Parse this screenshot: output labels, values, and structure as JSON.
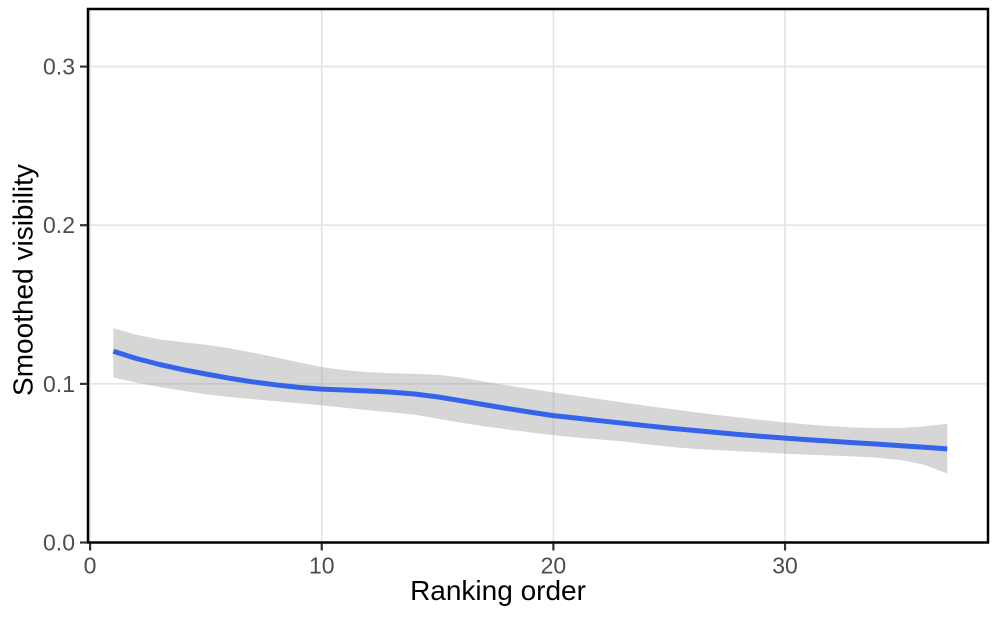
{
  "chart_data": {
    "type": "line",
    "subtype": "smoothed-line-with-confidence-ribbon",
    "xlabel": "Ranking order",
    "ylabel": "Smoothed visibility",
    "xlim": [
      -0.09,
      38.76
    ],
    "ylim": [
      0,
      0.3363
    ],
    "x_ticks": {
      "values": [
        0,
        10,
        20,
        30
      ],
      "labels": [
        "0",
        "10",
        "20",
        "30"
      ]
    },
    "y_ticks": {
      "values": [
        0,
        0.1,
        0.2,
        0.3
      ],
      "labels": [
        "0.0",
        "0.1",
        "0.2",
        "0.3"
      ]
    },
    "grid": "major-only",
    "legend": "none",
    "series": [
      {
        "name": "smoothed visibility mean",
        "x": [
          1,
          2,
          3,
          4,
          5,
          6,
          7,
          8,
          9,
          10,
          11,
          12,
          13,
          14,
          15,
          16,
          17,
          18,
          19,
          20,
          21,
          22,
          23,
          24,
          25,
          26,
          27,
          28,
          29,
          30,
          31,
          32,
          33,
          34,
          35,
          36,
          37
        ],
        "y": [
          0.1205,
          0.116,
          0.1122,
          0.109,
          0.1062,
          0.1036,
          0.1013,
          0.0994,
          0.0978,
          0.0967,
          0.0961,
          0.0955,
          0.0948,
          0.0936,
          0.0918,
          0.0894,
          0.0869,
          0.0845,
          0.0822,
          0.08,
          0.0784,
          0.0768,
          0.0752,
          0.0736,
          0.0721,
          0.0707,
          0.0694,
          0.0681,
          0.0669,
          0.0658,
          0.0648,
          0.0638,
          0.0629,
          0.062,
          0.061,
          0.06,
          0.059
        ],
        "ci_upper": [
          0.135,
          0.131,
          0.128,
          0.1263,
          0.1246,
          0.1225,
          0.1198,
          0.1168,
          0.1136,
          0.1106,
          0.1086,
          0.1074,
          0.1067,
          0.1063,
          0.1058,
          0.104,
          0.1015,
          0.099,
          0.0968,
          0.0946,
          0.0925,
          0.0904,
          0.0883,
          0.0862,
          0.0842,
          0.0823,
          0.0805,
          0.0788,
          0.0772,
          0.0757,
          0.0744,
          0.0733,
          0.0725,
          0.0721,
          0.0722,
          0.0731,
          0.0748
        ],
        "ci_lower": [
          0.104,
          0.1008,
          0.098,
          0.0956,
          0.0935,
          0.0918,
          0.0904,
          0.0891,
          0.0878,
          0.0864,
          0.0849,
          0.0834,
          0.082,
          0.0806,
          0.078,
          0.0756,
          0.0733,
          0.0713,
          0.0694,
          0.0676,
          0.0662,
          0.0649,
          0.0637,
          0.0619,
          0.0603,
          0.0591,
          0.0583,
          0.0575,
          0.0568,
          0.056,
          0.0554,
          0.0548,
          0.0542,
          0.0534,
          0.052,
          0.049,
          0.0435
        ]
      }
    ],
    "colors": {
      "line": "#3564EB",
      "ribbon": "#999999",
      "ribbon_opacity": 0.4,
      "grid": "#E4E4E4",
      "panel_border": "#000000",
      "tick": "#333333",
      "tick_label": "#4D4D4D",
      "axis_title": "#000000",
      "background": "#FFFFFF"
    }
  }
}
